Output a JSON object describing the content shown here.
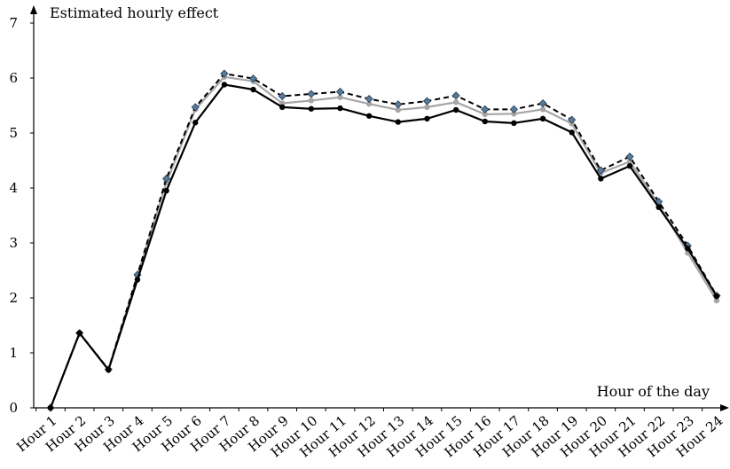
{
  "chart_data": {
    "type": "line",
    "title": "",
    "ylabel": "Estimated hourly effect",
    "xlabel": "Hour of the day",
    "categories": [
      "Hour 1",
      "Hour 2",
      "Hour 3",
      "Hour 4",
      "Hour 5",
      "Hour 6",
      "Hour 7",
      "Hour 8",
      "Hour 9",
      "Hour 10",
      "Hour 11",
      "Hour 12",
      "Hour 13",
      "Hour 14",
      "Hour 15",
      "Hour 16",
      "Hour 17",
      "Hour 18",
      "Hour 19",
      "Hour 20",
      "Hour 21",
      "Hour 22",
      "Hour 23",
      "Hour 24"
    ],
    "ylim": [
      0,
      7
    ],
    "yticks": [
      "0",
      "1",
      "2",
      "3",
      "4",
      "5",
      "6",
      "7"
    ],
    "grid": false,
    "legend": "none",
    "series": [
      {
        "style": "dashed",
        "color": "#000000",
        "marker_color": "#5a7a96",
        "marker": "diamond",
        "values": [
          0,
          1.36,
          0.7,
          2.42,
          4.17,
          5.47,
          6.08,
          5.99,
          5.67,
          5.71,
          5.75,
          5.62,
          5.52,
          5.58,
          5.68,
          5.43,
          5.43,
          5.54,
          5.24,
          4.32,
          4.57,
          3.75,
          2.95,
          2.04
        ]
      },
      {
        "style": "solid",
        "color": "#a6a6a6",
        "marker_color": "#a6a6a6",
        "marker": "circle",
        "values": [
          0,
          1.36,
          0.69,
          2.4,
          4.1,
          5.43,
          6.02,
          5.94,
          5.54,
          5.59,
          5.65,
          5.53,
          5.42,
          5.47,
          5.56,
          5.34,
          5.35,
          5.43,
          5.17,
          4.27,
          4.48,
          3.7,
          2.82,
          1.95
        ]
      },
      {
        "style": "solid",
        "color": "#000000",
        "marker_color": "#000000",
        "marker": "circle",
        "values": [
          0,
          1.36,
          0.69,
          2.33,
          3.95,
          5.19,
          5.88,
          5.79,
          5.47,
          5.44,
          5.45,
          5.31,
          5.2,
          5.26,
          5.42,
          5.21,
          5.18,
          5.26,
          5.01,
          4.17,
          4.4,
          3.65,
          2.9,
          2.03
        ]
      }
    ]
  }
}
